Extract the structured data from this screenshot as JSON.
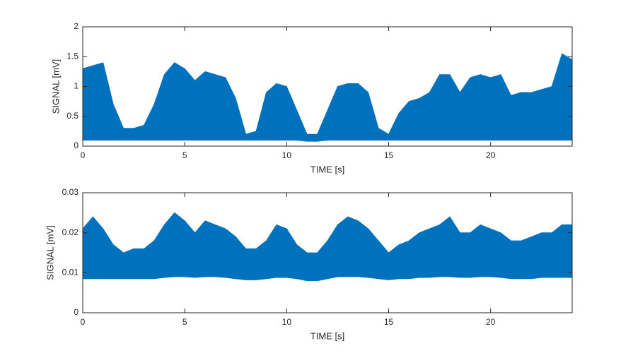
{
  "chart_data": [
    {
      "type": "band",
      "xlabel": "TIME [s]",
      "ylabel": "SIGNAL [mV]",
      "color": "#0072bd",
      "xlim": [
        0,
        24
      ],
      "xticks": [
        0,
        5,
        10,
        15,
        20
      ],
      "ylim": [
        0,
        2
      ],
      "yticks": [
        0,
        0.5,
        1,
        1.5,
        2
      ],
      "x": [
        0,
        0.5,
        1,
        1.5,
        2,
        2.5,
        3,
        3.5,
        4,
        4.5,
        5,
        5.5,
        6,
        6.5,
        7,
        7.5,
        8,
        8.5,
        9,
        9.5,
        10,
        10.5,
        11,
        11.5,
        12,
        12.5,
        13,
        13.5,
        14,
        14.5,
        15,
        15.5,
        16,
        16.5,
        17,
        17.5,
        18,
        18.5,
        19,
        19.5,
        20,
        20.5,
        21,
        21.5,
        22,
        22.5,
        23,
        23.5,
        24
      ],
      "high": [
        1.3,
        1.35,
        1.4,
        0.7,
        0.3,
        0.3,
        0.35,
        0.7,
        1.2,
        1.4,
        1.3,
        1.1,
        1.25,
        1.2,
        1.15,
        0.8,
        0.2,
        0.25,
        0.9,
        1.05,
        1.0,
        0.6,
        0.2,
        0.2,
        0.6,
        1.0,
        1.05,
        1.05,
        0.9,
        0.3,
        0.2,
        0.55,
        0.75,
        0.8,
        0.9,
        1.2,
        1.2,
        0.9,
        1.15,
        1.2,
        1.15,
        1.2,
        0.85,
        0.9,
        0.9,
        0.95,
        1.0,
        1.55,
        1.45
      ],
      "low": [
        0.1,
        0.1,
        0.1,
        0.1,
        0.1,
        0.1,
        0.1,
        0.1,
        0.1,
        0.1,
        0.1,
        0.1,
        0.1,
        0.1,
        0.1,
        0.1,
        0.1,
        0.1,
        0.1,
        0.1,
        0.1,
        0.1,
        0.08,
        0.08,
        0.1,
        0.1,
        0.1,
        0.1,
        0.1,
        0.1,
        0.1,
        0.1,
        0.1,
        0.1,
        0.1,
        0.1,
        0.1,
        0.1,
        0.1,
        0.1,
        0.1,
        0.1,
        0.1,
        0.1,
        0.1,
        0.1,
        0.1,
        0.1,
        0.1
      ]
    },
    {
      "type": "band",
      "xlabel": "TIME [s]",
      "ylabel": "SIGNAL [mV]",
      "color": "#0072bd",
      "xlim": [
        0,
        24
      ],
      "xticks": [
        0,
        5,
        10,
        15,
        20
      ],
      "ylim": [
        0,
        0.03
      ],
      "yticks": [
        0,
        0.01,
        0.02,
        0.03
      ],
      "x": [
        0,
        0.5,
        1,
        1.5,
        2,
        2.5,
        3,
        3.5,
        4,
        4.5,
        5,
        5.5,
        6,
        6.5,
        7,
        7.5,
        8,
        8.5,
        9,
        9.5,
        10,
        10.5,
        11,
        11.5,
        12,
        12.5,
        13,
        13.5,
        14,
        14.5,
        15,
        15.5,
        16,
        16.5,
        17,
        17.5,
        18,
        18.5,
        19,
        19.5,
        20,
        20.5,
        21,
        21.5,
        22,
        22.5,
        23,
        23.5,
        24
      ],
      "high": [
        0.021,
        0.024,
        0.021,
        0.017,
        0.015,
        0.016,
        0.016,
        0.018,
        0.022,
        0.025,
        0.023,
        0.02,
        0.023,
        0.022,
        0.021,
        0.019,
        0.016,
        0.016,
        0.018,
        0.022,
        0.021,
        0.017,
        0.015,
        0.015,
        0.018,
        0.022,
        0.024,
        0.023,
        0.021,
        0.018,
        0.015,
        0.017,
        0.018,
        0.02,
        0.021,
        0.022,
        0.024,
        0.02,
        0.02,
        0.022,
        0.021,
        0.02,
        0.018,
        0.018,
        0.019,
        0.02,
        0.02,
        0.022,
        0.022
      ],
      "low": [
        0.0085,
        0.0085,
        0.0085,
        0.0085,
        0.0085,
        0.0085,
        0.0085,
        0.0085,
        0.0088,
        0.009,
        0.009,
        0.0088,
        0.009,
        0.009,
        0.0088,
        0.0085,
        0.0082,
        0.0082,
        0.0085,
        0.0088,
        0.0088,
        0.0085,
        0.008,
        0.008,
        0.0085,
        0.009,
        0.009,
        0.009,
        0.0088,
        0.0085,
        0.0082,
        0.0085,
        0.0085,
        0.0088,
        0.0088,
        0.009,
        0.009,
        0.0088,
        0.0088,
        0.009,
        0.009,
        0.0088,
        0.0085,
        0.0085,
        0.0085,
        0.0088,
        0.0088,
        0.0088,
        0.0088
      ]
    }
  ]
}
